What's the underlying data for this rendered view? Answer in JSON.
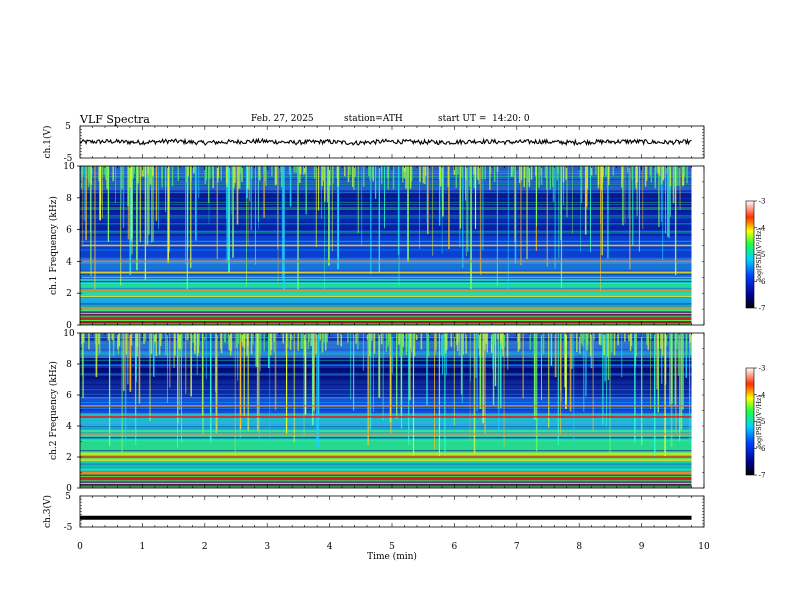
{
  "header": {
    "title": "VLF Spectra",
    "date": "Feb. 27, 2025",
    "station": "station=ATH",
    "start": "start UT =  14:20: 0"
  },
  "chart_data": [
    {
      "type": "line",
      "panel": "ch1-waveform",
      "ylabel": "ch.1(V)",
      "ylim": [
        -5,
        5
      ],
      "y_ticks": [
        "5",
        "-5"
      ],
      "xlim": [
        0,
        10
      ],
      "series": [
        {
          "values": [
            0,
            0.3,
            -0.2,
            0.5,
            -0.4,
            0.1,
            0.4,
            -0.3,
            0.2,
            -0.5,
            0.3,
            0.0,
            -0.2,
            0.4,
            -0.1,
            0.2,
            -0.3,
            0.1,
            0.3,
            -0.2,
            0.0
          ]
        }
      ],
      "x_end": 9.8,
      "color": "#000000"
    },
    {
      "type": "heatmap",
      "panel": "ch1-spectrogram",
      "ylabel": "ch.1 Frequency (kHz)",
      "ylim": [
        0,
        10
      ],
      "y_ticks": [
        "0",
        "2",
        "4",
        "6",
        "8",
        "10"
      ],
      "xlim": [
        0,
        10
      ],
      "x_end": 9.8,
      "colorbar": {
        "label": "log(PSD)(V²/Hz)",
        "range": [
          -7,
          -3
        ],
        "ticks": [
          "-3",
          "-4",
          "-5",
          "-6",
          "-7"
        ]
      },
      "bands_khz": [
        1.0,
        1.8,
        2.2,
        3.3,
        4.0,
        5.0
      ]
    },
    {
      "type": "heatmap",
      "panel": "ch2-spectrogram",
      "ylabel": "ch.2 Frequency (kHz)",
      "ylim": [
        0,
        10
      ],
      "y_ticks": [
        "0",
        "2",
        "4",
        "6",
        "8",
        "10"
      ],
      "xlim": [
        0,
        10
      ],
      "x_end": 9.8,
      "colorbar": {
        "label": "log(PSD)(V²/Hz)",
        "range": [
          -7,
          -3
        ],
        "ticks": [
          "-3",
          "-4",
          "-5",
          "-6",
          "-7"
        ]
      },
      "bands_khz": [
        1.0,
        1.8,
        2.0,
        2.2,
        3.5,
        4.6,
        5.3
      ]
    },
    {
      "type": "line",
      "panel": "ch3-waveform",
      "ylabel": "ch.3(V)",
      "ylim": [
        -5,
        5
      ],
      "y_ticks": [
        "5",
        "-5"
      ],
      "xlim": [
        0,
        10
      ],
      "x_end": 9.8,
      "series": [
        {
          "values": [
            -2.0,
            -2.0
          ]
        }
      ],
      "xlabel": "Time (min)",
      "x_ticks": [
        "0",
        "1",
        "2",
        "3",
        "4",
        "5",
        "6",
        "7",
        "8",
        "9",
        "10"
      ],
      "color": "#000000"
    }
  ]
}
